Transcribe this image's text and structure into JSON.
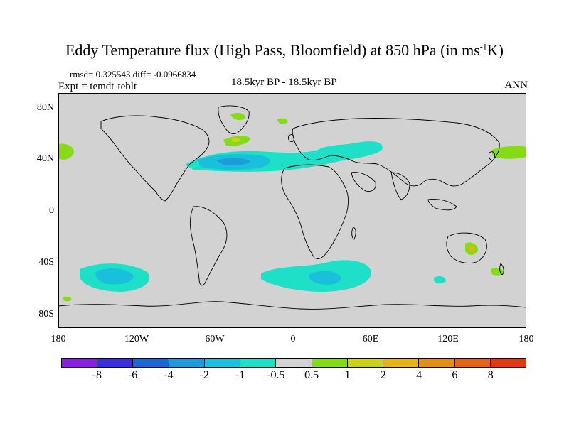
{
  "title_main": "Eddy Temperature flux (High Pass, Bloomfield) at 850 hPa (in ms",
  "title_sup": "-1",
  "title_end": "K)",
  "stats": "rmsd= 0.325543 diff= -0.0966834",
  "expt": "Expt = temdt-teblt",
  "center_label": "18.5kyr BP - 18.5kyr BP",
  "season": "ANN",
  "y_labels": [
    "80N",
    "40N",
    "0",
    "40S",
    "80S"
  ],
  "x_labels": [
    "180",
    "120W",
    "60W",
    "0",
    "60E",
    "120E",
    "180"
  ],
  "colorbar": {
    "colors": [
      "#8A1FE0",
      "#3A2FD8",
      "#1E66D8",
      "#1C9CD8",
      "#18C0DC",
      "#1EE0C8",
      "#D2D2D2",
      "#86DC14",
      "#CCD21A",
      "#E2B414",
      "#E09014",
      "#E26414",
      "#E03A14"
    ],
    "labels": [
      "-8",
      "-6",
      "-4",
      "-2",
      "-1",
      "-0.5",
      "0.5",
      "1",
      "2",
      "4",
      "6",
      "8"
    ]
  },
  "map_background": "#D2D2D2"
}
